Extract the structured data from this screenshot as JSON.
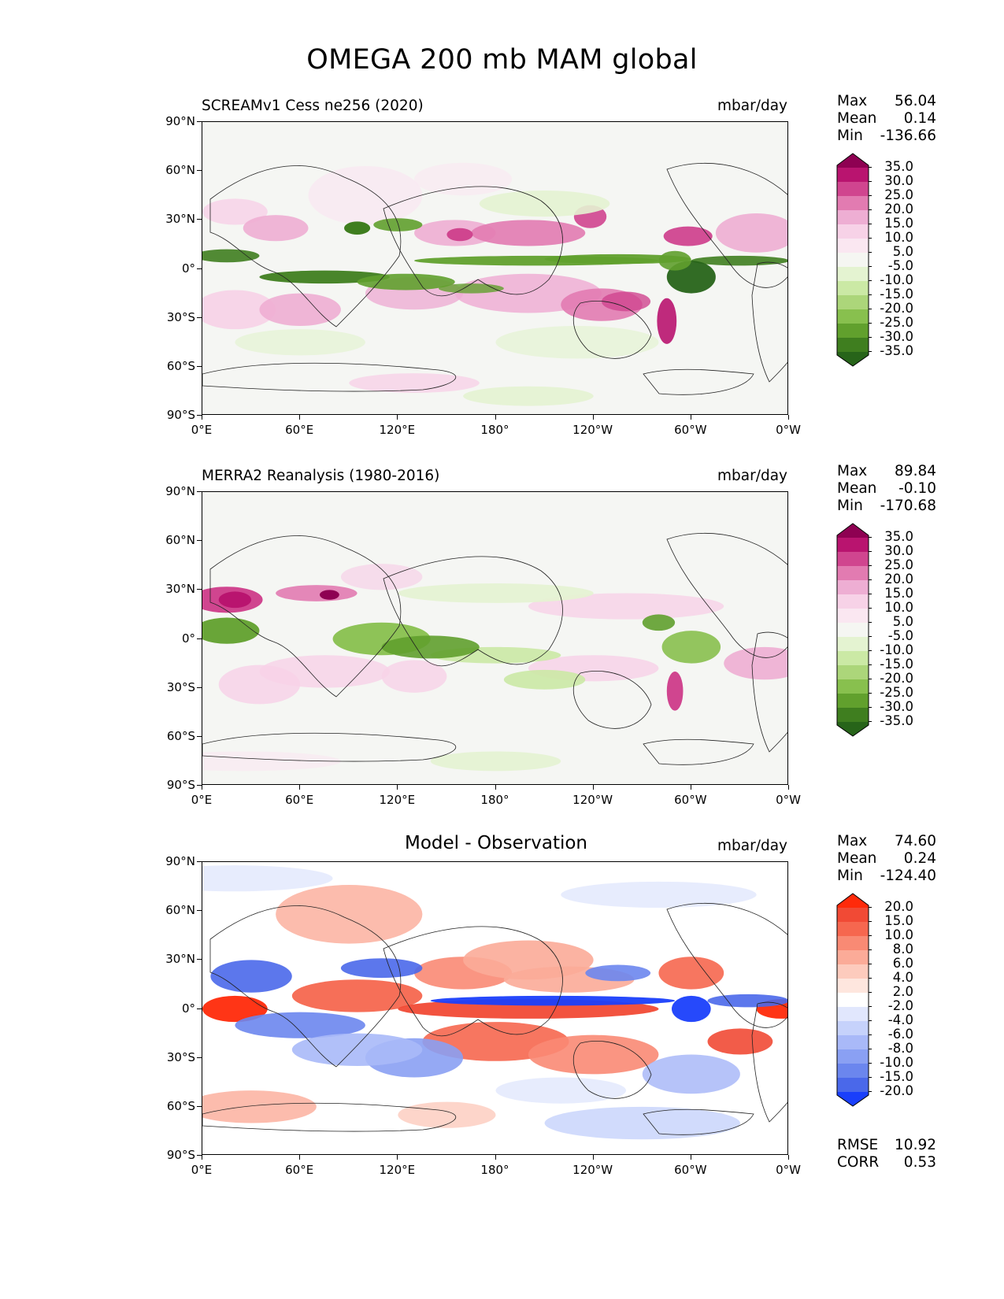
{
  "title": "OMEGA 200 mb MAM global",
  "axes": {
    "yticks": [
      "90°N",
      "60°N",
      "30°N",
      "0°",
      "30°S",
      "60°S",
      "90°S"
    ],
    "xticks": [
      "0°E",
      "60°E",
      "120°E",
      "180°",
      "120°W",
      "60°W",
      "0°W"
    ]
  },
  "panels": [
    {
      "id": "model",
      "title": "SCREAMv1 Cess ne256 (2020)",
      "units": "mbar/day",
      "stats": {
        "max_label": "Max",
        "max": "56.04",
        "mean_label": "Mean",
        "mean": "0.14",
        "min_label": "Min",
        "min": "-136.66"
      },
      "colorbar": {
        "labels": [
          "35.0",
          "30.0",
          "25.0",
          "20.0",
          "15.0",
          "10.0",
          "5.0",
          "-5.0",
          "-10.0",
          "-15.0",
          "-20.0",
          "-25.0",
          "-30.0",
          "-35.0"
        ],
        "colors": [
          "#8e0152",
          "#b9146f",
          "#d0458f",
          "#e27bb1",
          "#eeaed3",
          "#f7d2e7",
          "#fae7f1",
          "#f5f6f2",
          "#e4f3d1",
          "#cbe9a5",
          "#acd67a",
          "#88c04e",
          "#61a02d",
          "#3f7e1f",
          "#276419"
        ]
      }
    },
    {
      "id": "obs",
      "title": "MERRA2 Reanalysis (1980-2016)",
      "units": "mbar/day",
      "stats": {
        "max_label": "Max",
        "max": "89.84",
        "mean_label": "Mean",
        "mean": "-0.10",
        "min_label": "Min",
        "min": "-170.68"
      },
      "colorbar": {
        "labels": [
          "35.0",
          "30.0",
          "25.0",
          "20.0",
          "15.0",
          "10.0",
          "5.0",
          "-5.0",
          "-10.0",
          "-15.0",
          "-20.0",
          "-25.0",
          "-30.0",
          "-35.0"
        ],
        "colors": [
          "#8e0152",
          "#b9146f",
          "#d0458f",
          "#e27bb1",
          "#eeaed3",
          "#f7d2e7",
          "#fae7f1",
          "#f5f6f2",
          "#e4f3d1",
          "#cbe9a5",
          "#acd67a",
          "#88c04e",
          "#61a02d",
          "#3f7e1f",
          "#276419"
        ]
      }
    },
    {
      "id": "diff",
      "title": "Model - Observation",
      "units": "mbar/day",
      "stats": {
        "max_label": "Max",
        "max": "74.60",
        "mean_label": "Mean",
        "mean": "0.24",
        "min_label": "Min",
        "min": "-124.40"
      },
      "colorbar": {
        "labels": [
          "20.0",
          "15.0",
          "10.0",
          "8.0",
          "6.0",
          "4.0",
          "2.0",
          "-2.0",
          "-4.0",
          "-6.0",
          "-8.0",
          "-10.0",
          "-15.0",
          "-20.0"
        ],
        "colors": [
          "#ff2a0a",
          "#f14a35",
          "#f6674f",
          "#f98a74",
          "#fbab98",
          "#fdcbbd",
          "#fee6de",
          "#ffffff",
          "#e1e7fd",
          "#c6d2fb",
          "#a9b9f8",
          "#8aa0f3",
          "#6b86ee",
          "#4a68ea",
          "#1a3ffb"
        ]
      },
      "extra_stats": {
        "rmse_label": "RMSE",
        "rmse": "10.92",
        "corr_label": "CORR",
        "corr": "0.53"
      }
    }
  ],
  "chart_data": [
    {
      "type": "heatmap",
      "title": "SCREAMv1 Cess ne256 (2020)",
      "variable": "OMEGA 200 mb MAM",
      "units": "mbar/day",
      "x_range": [
        0,
        360
      ],
      "y_range": [
        -90,
        90
      ],
      "max": 56.04,
      "mean": 0.14,
      "min": -136.66,
      "levels": [
        -35,
        -30,
        -25,
        -20,
        -15,
        -10,
        -5,
        5,
        10,
        15,
        20,
        25,
        30,
        35
      ]
    },
    {
      "type": "heatmap",
      "title": "MERRA2 Reanalysis (1980-2016)",
      "variable": "OMEGA 200 mb MAM",
      "units": "mbar/day",
      "x_range": [
        0,
        360
      ],
      "y_range": [
        -90,
        90
      ],
      "max": 89.84,
      "mean": -0.1,
      "min": -170.68,
      "levels": [
        -35,
        -30,
        -25,
        -20,
        -15,
        -10,
        -5,
        5,
        10,
        15,
        20,
        25,
        30,
        35
      ]
    },
    {
      "type": "heatmap",
      "title": "Model - Observation",
      "variable": "OMEGA 200 mb MAM",
      "units": "mbar/day",
      "x_range": [
        0,
        360
      ],
      "y_range": [
        -90,
        90
      ],
      "max": 74.6,
      "mean": 0.24,
      "min": -124.4,
      "rmse": 10.92,
      "corr": 0.53,
      "levels": [
        -20,
        -15,
        -10,
        -8,
        -6,
        -4,
        -2,
        2,
        4,
        6,
        8,
        10,
        15,
        20
      ]
    }
  ]
}
